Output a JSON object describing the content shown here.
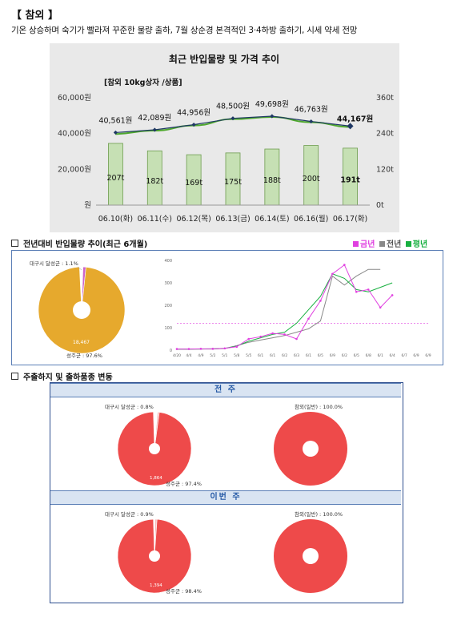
{
  "header": {
    "title": "【 참외 】",
    "subtitle": "기온 상승하며 숙기가 빨라져 꾸준한 물량 출하, 7월 상순경 본격적인 3·4하방 출하기, 시세 약세 전망"
  },
  "chart_data": [
    {
      "type": "bar",
      "title": "최근 반입물량 및 가격 추이",
      "subtitle": "[참외 10kg상자 /상품]",
      "categories": [
        "06.10(화)",
        "06.11(수)",
        "06.12(목)",
        "06.13(금)",
        "06.14(토)",
        "06.16(월)",
        "06.17(화)"
      ],
      "series": [
        {
          "type": "bar",
          "axis": "right",
          "values": [
            207,
            182,
            169,
            175,
            188,
            200,
            191
          ],
          "labels": [
            "207t",
            "182t",
            "169t",
            "175t",
            "188t",
            "200t",
            "191t"
          ],
          "color": "#c6e0b4"
        },
        {
          "type": "line",
          "axis": "left",
          "values": [
            40561,
            42089,
            44956,
            48500,
            49698,
            46763,
            44167
          ],
          "labels": [
            "40,561원",
            "42,089원",
            "44,956원",
            "48,500원",
            "49,698원",
            "46,763원",
            "44,167원"
          ],
          "color": "#1f3864"
        }
      ],
      "y_left": {
        "ticks": [
          "원",
          "20,000원",
          "40,000원",
          "60,000원"
        ],
        "range": [
          0,
          60000
        ]
      },
      "y_right": {
        "ticks": [
          "0t",
          "120t",
          "240t",
          "360t"
        ],
        "range": [
          0,
          360
        ]
      },
      "trend_color": "#4ea72e"
    },
    {
      "type": "pie",
      "slices": [
        {
          "label": "대구시 달성군 : 1.1%",
          "value": 1.1,
          "color": "#cc66cc"
        },
        {
          "label": "성주군 : 97.6%",
          "value": 97.6,
          "color": "#e6a92d"
        },
        {
          "label": "",
          "value": 1.3,
          "color": "#ffffff"
        }
      ],
      "inner_label": "18,467"
    },
    {
      "type": "line",
      "y_ticks": [
        "0",
        "100",
        "200",
        "300",
        "400"
      ],
      "y_range": [
        0,
        400
      ],
      "x_count": 22,
      "x_tick_labels": [
        "4/20",
        "4/4",
        "4/9",
        "5/2",
        "5/1",
        "5/8",
        "5/5",
        "6/1",
        "6/1",
        "6/2",
        "6/3",
        "6/1",
        "6/5",
        "6/9",
        "6/2",
        "6/5",
        "6/8",
        "6/1",
        "6/4",
        "6/7",
        "6/9",
        "6/9"
      ],
      "reference_line": 120,
      "series": [
        {
          "name": "금년",
          "color": "#e040e0",
          "values": [
            5,
            5,
            6,
            6,
            8,
            15,
            50,
            60,
            75,
            70,
            50,
            140,
            220,
            340,
            380,
            260,
            270,
            190,
            245
          ]
        },
        {
          "name": "전년",
          "color": "#888888",
          "values": [
            4,
            4,
            5,
            5,
            7,
            20,
            35,
            45,
            55,
            65,
            80,
            95,
            130,
            330,
            290,
            330,
            360,
            360
          ]
        },
        {
          "name": "평년",
          "color": "#18b040",
          "values": [
            5,
            5,
            5,
            6,
            8,
            18,
            40,
            55,
            70,
            80,
            120,
            180,
            240,
            340,
            320,
            270,
            260,
            280,
            300
          ]
        }
      ]
    },
    {
      "type": "pie",
      "panel": "전 주",
      "slices": [
        {
          "label": "대구시 달성군 : 0.8%",
          "value": 0.8,
          "color": "#f8b9b9"
        },
        {
          "label": "성주군 : 97.4%",
          "value": 97.4,
          "color": "#ee4a4a"
        },
        {
          "label": "",
          "value": 1.8,
          "color": "#ffffff"
        }
      ],
      "inner_label": "1,864"
    },
    {
      "type": "pie",
      "panel": "전 주",
      "slices": [
        {
          "label": "참외(일반) : 100.0%",
          "value": 100,
          "color": "#ee4a4a"
        }
      ],
      "inner_label": ""
    },
    {
      "type": "pie",
      "panel": "이번 주",
      "slices": [
        {
          "label": "대구시 달성군 : 0.9%",
          "value": 0.9,
          "color": "#f8b9b9"
        },
        {
          "label": "성주군 : 98.4%",
          "value": 98.4,
          "color": "#ee4a4a"
        },
        {
          "label": "",
          "value": 0.7,
          "color": "#ffffff"
        }
      ],
      "inner_label": "1,394"
    },
    {
      "type": "pie",
      "panel": "이번 주",
      "slices": [
        {
          "label": "참외(일반) : 100.0%",
          "value": 100,
          "color": "#ee4a4a"
        }
      ],
      "inner_label": ""
    }
  ],
  "sections": {
    "yoy": {
      "heading": "전년대비 반입물량 추이(최근 6개월)",
      "legend": [
        {
          "label": "금년",
          "color": "#e040e0"
        },
        {
          "label": "전년",
          "color": "#888888"
        },
        {
          "label": "평년",
          "color": "#18b040"
        }
      ]
    },
    "origin": {
      "heading": "주출하지 및 출하품종 변동",
      "panel_prev": "전 주",
      "panel_curr": "이번 주"
    }
  }
}
